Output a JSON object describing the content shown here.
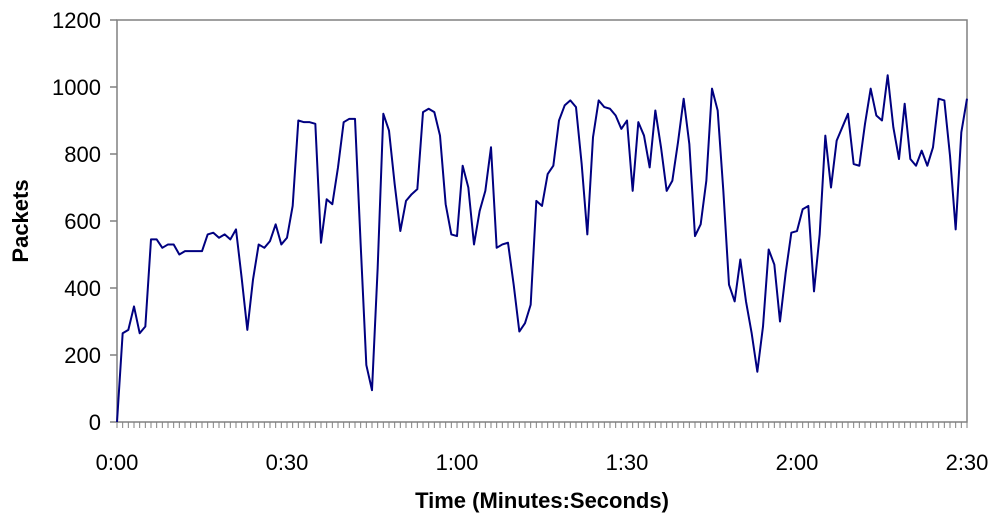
{
  "chart_data": {
    "type": "line",
    "title": "",
    "xlabel": "Time (Minutes:Seconds)",
    "ylabel": "Packets",
    "xlim": [
      0,
      150
    ],
    "ylim": [
      0,
      1200
    ],
    "x_ticks": [
      {
        "value": 0,
        "label": "0:00"
      },
      {
        "value": 30,
        "label": "0:30"
      },
      {
        "value": 60,
        "label": "1:00"
      },
      {
        "value": 90,
        "label": "1:30"
      },
      {
        "value": 120,
        "label": "2:00"
      },
      {
        "value": 150,
        "label": "2:30"
      }
    ],
    "y_ticks": [
      {
        "value": 0,
        "label": "0"
      },
      {
        "value": 200,
        "label": "200"
      },
      {
        "value": 400,
        "label": "400"
      },
      {
        "value": 600,
        "label": "600"
      },
      {
        "value": 800,
        "label": "800"
      },
      {
        "value": 1000,
        "label": "1000"
      },
      {
        "value": 1200,
        "label": "1200"
      }
    ],
    "minor_x_tick_step": 1,
    "grid": false,
    "legend": "none",
    "series": [
      {
        "name": "",
        "color": "#000080",
        "x": [
          0,
          1,
          2,
          3,
          4,
          5,
          6,
          7,
          8,
          9,
          10,
          11,
          12,
          13,
          14,
          15,
          16,
          17,
          18,
          19,
          20,
          21,
          22,
          23,
          24,
          25,
          26,
          27,
          28,
          29,
          30,
          31,
          32,
          33,
          34,
          35,
          36,
          37,
          38,
          39,
          40,
          41,
          42,
          43,
          44,
          45,
          46,
          47,
          48,
          49,
          50,
          51,
          52,
          53,
          54,
          55,
          56,
          57,
          58,
          59,
          60,
          61,
          62,
          63,
          64,
          65,
          66,
          67,
          68,
          69,
          70,
          71,
          72,
          73,
          74,
          75,
          76,
          77,
          78,
          79,
          80,
          81,
          82,
          83,
          84,
          85,
          86,
          87,
          88,
          89,
          90,
          91,
          92,
          93,
          94,
          95,
          96,
          97,
          98,
          99,
          100,
          101,
          102,
          103,
          104,
          105,
          106,
          107,
          108,
          109,
          110,
          111,
          112,
          113,
          114,
          115,
          116,
          117,
          118,
          119,
          120,
          121,
          122,
          123,
          124,
          125,
          126,
          127,
          128,
          129,
          130,
          131,
          132,
          133,
          134,
          135,
          136,
          137,
          138,
          139,
          140,
          141,
          142,
          143,
          144,
          145,
          146,
          147,
          148,
          149,
          150
        ],
        "y": [
          0,
          265,
          275,
          345,
          265,
          285,
          545,
          545,
          520,
          530,
          530,
          500,
          510,
          510,
          510,
          510,
          560,
          565,
          550,
          560,
          545,
          575,
          430,
          275,
          425,
          530,
          520,
          540,
          590,
          530,
          550,
          645,
          900,
          895,
          895,
          890,
          535,
          665,
          650,
          760,
          895,
          905,
          905,
          530,
          170,
          95,
          460,
          920,
          870,
          710,
          570,
          660,
          680,
          695,
          925,
          935,
          925,
          855,
          650,
          560,
          555,
          765,
          700,
          530,
          630,
          690,
          820,
          520,
          530,
          535,
          410,
          270,
          295,
          350,
          660,
          645,
          740,
          765,
          900,
          945,
          960,
          940,
          770,
          560,
          850,
          960,
          940,
          935,
          915,
          875,
          900,
          690,
          895,
          855,
          760,
          930,
          820,
          690,
          720,
          835,
          965,
          830,
          555,
          590,
          720,
          995,
          930,
          690,
          410,
          360,
          485,
          360,
          265,
          150,
          285,
          515,
          470,
          300,
          445,
          565,
          570,
          635,
          645,
          390,
          560,
          855,
          700,
          840,
          880,
          920,
          770,
          765,
          890,
          995,
          915,
          900,
          1035,
          880,
          785,
          950,
          785,
          765,
          810,
          765,
          820,
          965,
          960,
          795,
          575,
          865,
          965
        ]
      }
    ]
  }
}
